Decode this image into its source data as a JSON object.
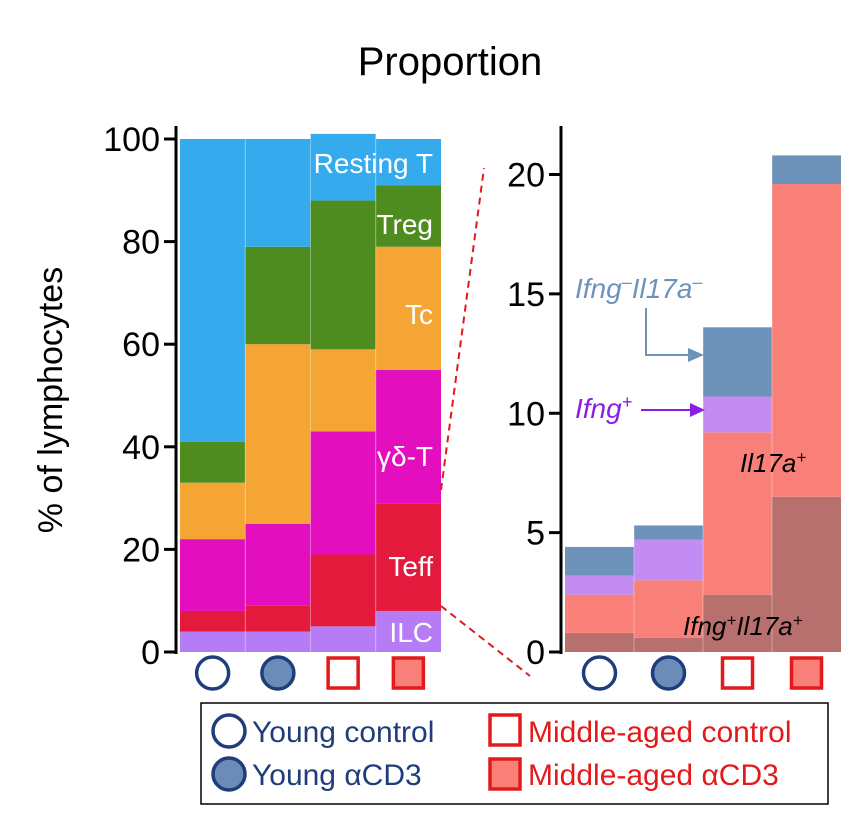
{
  "chart_data": [
    {
      "type": "stacked-bar",
      "title": "Proportion",
      "ylabel": "% of lymphocytes",
      "ylim": [
        0,
        100
      ],
      "yticks": [
        0,
        20,
        40,
        60,
        80,
        100
      ],
      "categories": [
        "Young control",
        "Young αCD3",
        "Middle-aged control",
        "Middle-aged αCD3"
      ],
      "series": [
        {
          "name": "ILC",
          "label": "ILC",
          "color": "#b57cf5",
          "values": [
            4,
            4,
            5,
            8
          ]
        },
        {
          "name": "Teff",
          "label": "Teff",
          "color": "#e31a3c",
          "values": [
            4,
            5,
            14,
            21
          ]
        },
        {
          "name": "γδ-T",
          "label": "γδ-T",
          "color": "#e30fbf",
          "values": [
            14,
            16,
            24,
            26
          ]
        },
        {
          "name": "Tc",
          "label": "Tc",
          "color": "#f4a533",
          "values": [
            11,
            35,
            16,
            24
          ]
        },
        {
          "name": "Treg",
          "label": "Treg",
          "color": "#4f8c1f",
          "values": [
            8,
            19,
            29,
            12
          ]
        },
        {
          "name": "Resting T",
          "label": "Resting T",
          "color": "#35abee",
          "values": [
            59,
            21,
            13,
            9
          ]
        }
      ]
    },
    {
      "type": "stacked-bar",
      "ylim": [
        0,
        21
      ],
      "yticks": [
        0,
        5,
        10,
        15,
        20
      ],
      "categories": [
        "Young control",
        "Young αCD3",
        "Middle-aged control",
        "Middle-aged αCD3"
      ],
      "series": [
        {
          "name": "Ifng+Il17a+",
          "color": "#b8706e",
          "values": [
            0.8,
            0.6,
            2.4,
            6.5
          ]
        },
        {
          "name": "Il17a+",
          "color": "#f88078",
          "values": [
            1.6,
            2.4,
            6.8,
            13.1
          ]
        },
        {
          "name": "Ifng+",
          "color": "#c38cf3",
          "values": [
            0.8,
            1.7,
            1.5,
            0
          ]
        },
        {
          "name": "Ifng-Il17a-",
          "color": "#6d93bb",
          "values": [
            1.2,
            0.6,
            2.9,
            1.2
          ]
        }
      ]
    }
  ],
  "annotations": {
    "ifng_neg": {
      "base1": "Ifng",
      "sup1": "–",
      "base2": "Il17a",
      "sup2": "–",
      "color": "#6d93bb"
    },
    "ifng_pos": {
      "base": "Ifng",
      "sup": "+",
      "color": "#8a1de8"
    },
    "il17a_pos": {
      "base": "Il17a",
      "sup": "+"
    },
    "double_pos": {
      "base1": "Ifng",
      "sup1": "+",
      "base2": "Il17a",
      "sup2": "+"
    }
  },
  "legend": {
    "young_control": "Young control",
    "young_acd3": "Young αCD3",
    "mid_control": "Middle-aged control",
    "mid_acd3": "Middle-aged αCD3",
    "young_color": "#1f3d7a",
    "young_fill": "#6b8cb8",
    "mid_color": "#e31a1c",
    "mid_fill": "#f88078"
  }
}
